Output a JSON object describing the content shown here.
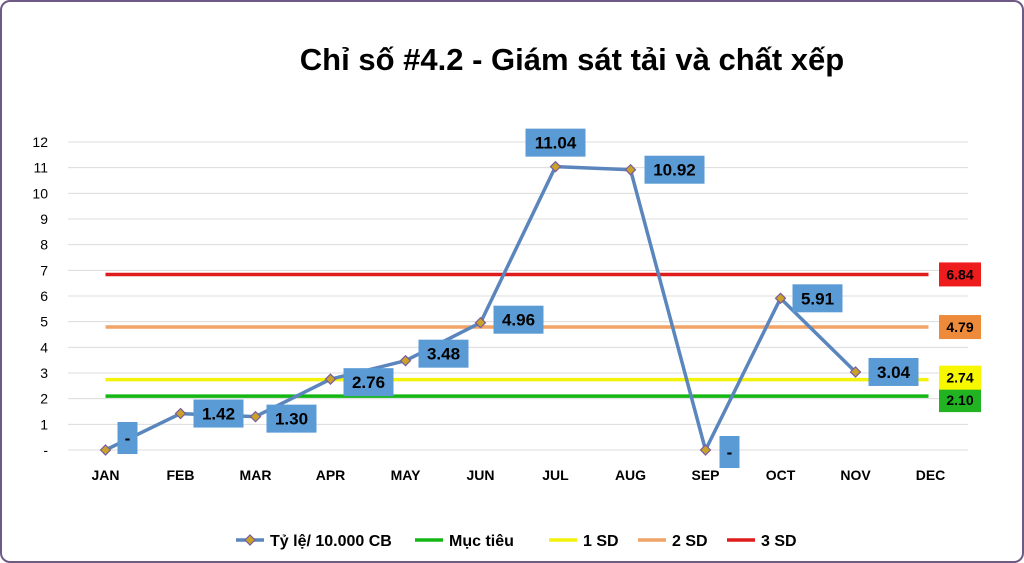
{
  "chart_data": {
    "type": "line",
    "title": "Chỉ số #4.2 - Giám sát tải và chất xếp",
    "categories": [
      "JAN",
      "FEB",
      "MAR",
      "APR",
      "MAY",
      "JUN",
      "JUL",
      "AUG",
      "SEP",
      "OCT",
      "NOV",
      "DEC"
    ],
    "y_tick_labels": [
      "-",
      "1",
      "2",
      "3",
      "4",
      "5",
      "6",
      "7",
      "8",
      "9",
      "10",
      "11",
      "12"
    ],
    "ylim": [
      0,
      12
    ],
    "grid": true,
    "legend_position": "bottom",
    "series": [
      {
        "name": "Tỷ lệ/ 10.000 CB",
        "values": [
          0,
          1.42,
          1.3,
          2.76,
          3.48,
          4.96,
          11.04,
          10.92,
          0,
          5.91,
          3.04,
          null
        ],
        "labels": [
          "-",
          "1.42",
          "1.30",
          "2.76",
          "3.48",
          "4.96",
          "11.04",
          "10.92",
          "-",
          "5.91",
          "3.04",
          ""
        ],
        "color": "#5b86bd",
        "marker_color": "#c9a227",
        "label_background": "#5b9bd5"
      }
    ],
    "reference_lines": [
      {
        "name": "Mục tiêu",
        "value": 2.1,
        "label": "2.10",
        "color": "#13b613",
        "label_background": "#22b322"
      },
      {
        "name": "1 SD",
        "value": 2.74,
        "label": "2.74",
        "color": "#f2f20a",
        "label_background": "#f7f700"
      },
      {
        "name": "2 SD",
        "value": 4.79,
        "label": "4.79",
        "color": "#f0a467",
        "label_background": "#ee8b3a"
      },
      {
        "name": "3 SD",
        "value": 6.84,
        "label": "6.84",
        "color": "#e01b1b",
        "label_background": "#ee1c1c"
      }
    ]
  }
}
